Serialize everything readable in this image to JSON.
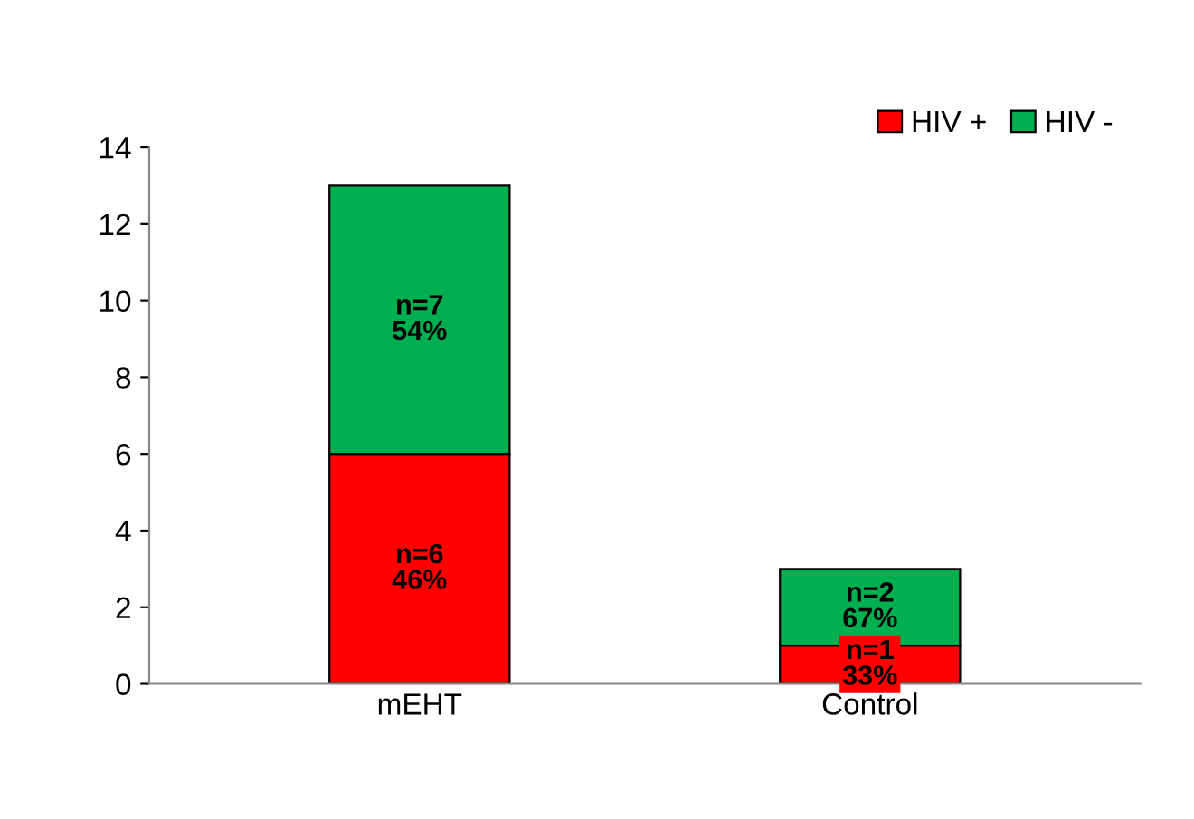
{
  "chart_data": {
    "type": "bar",
    "stacked": true,
    "categories": [
      "mEHT",
      "Control"
    ],
    "series": [
      {
        "name": "HIV +",
        "color": "#ff0000",
        "values": [
          6,
          1
        ],
        "value_labels": [
          "n=6\n46%",
          "n=1\n33%"
        ]
      },
      {
        "name": "HIV -",
        "color": "#00b050",
        "values": [
          7,
          2
        ],
        "value_labels": [
          "n=7\n54%",
          "n=2\n67%"
        ]
      }
    ],
    "ylim": [
      0,
      14
    ],
    "yticks": [
      0,
      2,
      4,
      6,
      8,
      10,
      12,
      14
    ],
    "grid": false,
    "legend": "top right"
  }
}
